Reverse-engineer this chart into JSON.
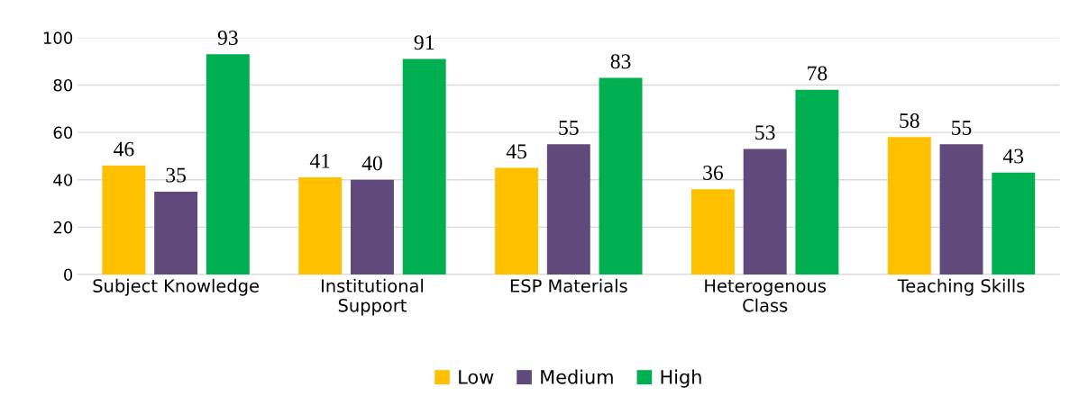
{
  "chart_data": {
    "type": "bar",
    "categories": [
      "Subject Knowledge",
      "Institutional\nSupport",
      "ESP Materials",
      "Heterogenous\nClass",
      "Teaching Skills"
    ],
    "series": [
      {
        "name": "Low",
        "color": "#ffc000",
        "values": [
          46,
          41,
          45,
          36,
          58
        ]
      },
      {
        "name": "Medium",
        "color": "#604a7b",
        "values": [
          35,
          40,
          55,
          53,
          55
        ]
      },
      {
        "name": "High",
        "color": "#00b050",
        "values": [
          93,
          91,
          83,
          78,
          43
        ]
      }
    ],
    "ylim": [
      0,
      100
    ],
    "yticks": [
      0,
      20,
      40,
      60,
      80,
      100
    ],
    "grid": "y",
    "legend": "bottom",
    "data_labels": true
  }
}
